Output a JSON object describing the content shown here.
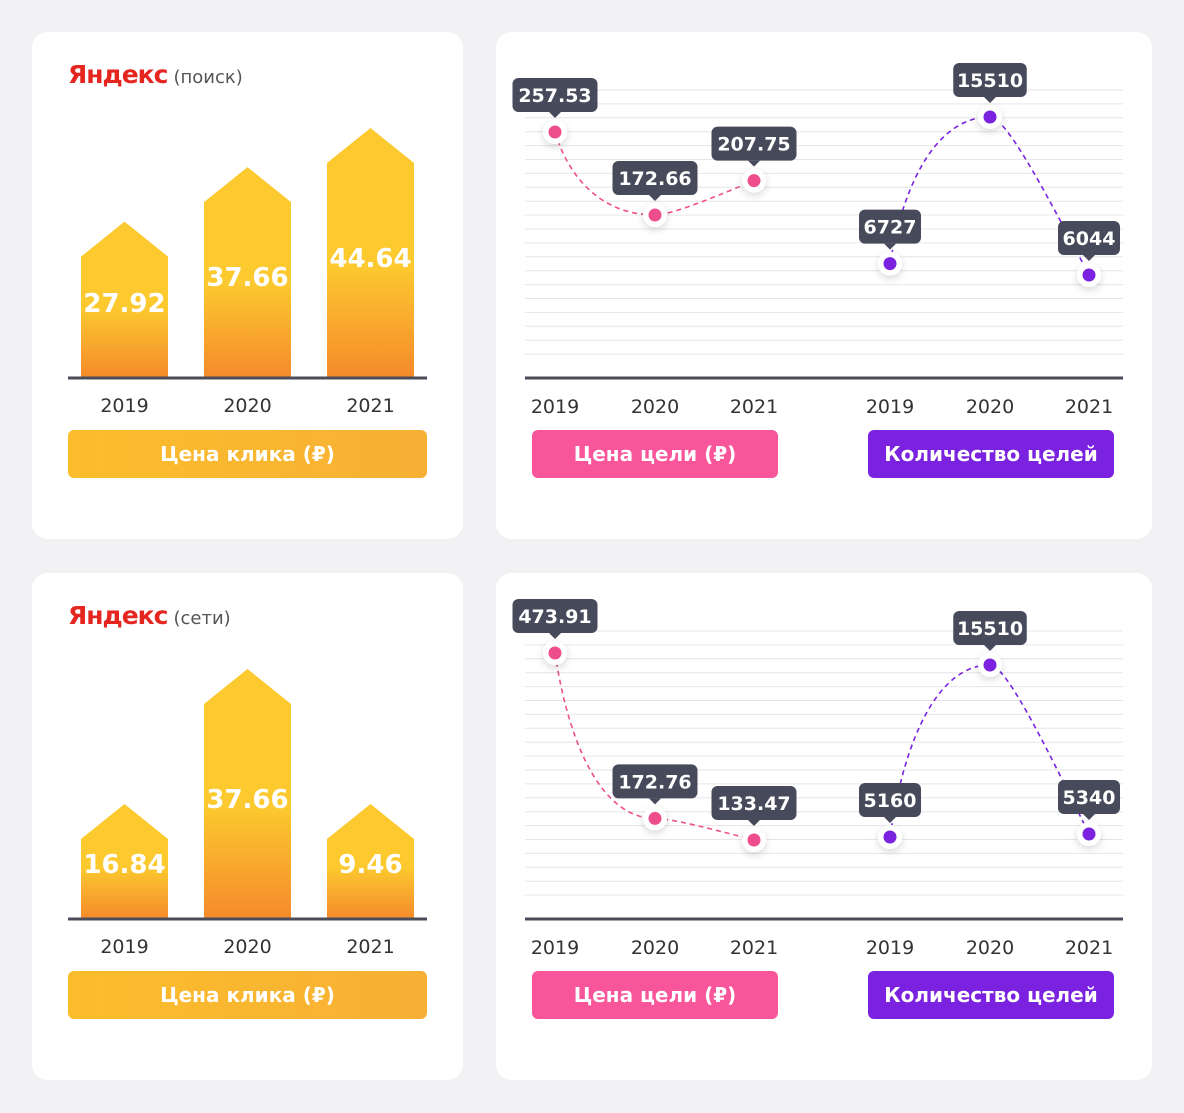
{
  "colors": {
    "bar_top": "#fcc92f",
    "bar_bottom": "#f58a2b",
    "pink": "#ee4f8c",
    "purple": "#7a22e0",
    "tooltip": "#474a5a",
    "axis": "#4a4c5a"
  },
  "chart_data": [
    {
      "type": "bar",
      "title_logo": "Яндекс",
      "title_sub": "(поиск)",
      "categories": [
        "2019",
        "2020",
        "2021"
      ],
      "values": [
        27.92,
        37.66,
        44.64
      ],
      "labels": [
        "27.92",
        "37.66",
        "44.64"
      ],
      "legend": "Цена клика (₽)"
    },
    {
      "type": "line",
      "series": [
        {
          "name": "Цена цели (₽)",
          "categories": [
            "2019",
            "2020",
            "2021"
          ],
          "values": [
            257.53,
            172.66,
            207.75
          ],
          "labels": [
            "257.53",
            "172.66",
            "207.75"
          ]
        },
        {
          "name": "Количество целей",
          "categories": [
            "2019",
            "2020",
            "2021"
          ],
          "values": [
            6727,
            15510,
            6044
          ],
          "labels": [
            "6727",
            "15510",
            "6044"
          ]
        }
      ],
      "grid": true
    },
    {
      "type": "bar",
      "title_logo": "Яндекс",
      "title_sub": "(сети)",
      "categories": [
        "2019",
        "2020",
        "2021"
      ],
      "values": [
        16.84,
        37.66,
        9.46
      ],
      "labels": [
        "16.84",
        "37.66",
        "9.46"
      ],
      "legend": "Цена клика (₽)"
    },
    {
      "type": "line",
      "series": [
        {
          "name": "Цена цели (₽)",
          "categories": [
            "2019",
            "2020",
            "2021"
          ],
          "values": [
            473.91,
            172.76,
            133.47
          ],
          "labels": [
            "473.91",
            "172.76",
            "133.47"
          ]
        },
        {
          "name": "Количество целей",
          "categories": [
            "2019",
            "2020",
            "2021"
          ],
          "values": [
            5160,
            15510,
            5340
          ],
          "labels": [
            "5160",
            "15510",
            "5340"
          ]
        }
      ],
      "grid": true
    }
  ]
}
